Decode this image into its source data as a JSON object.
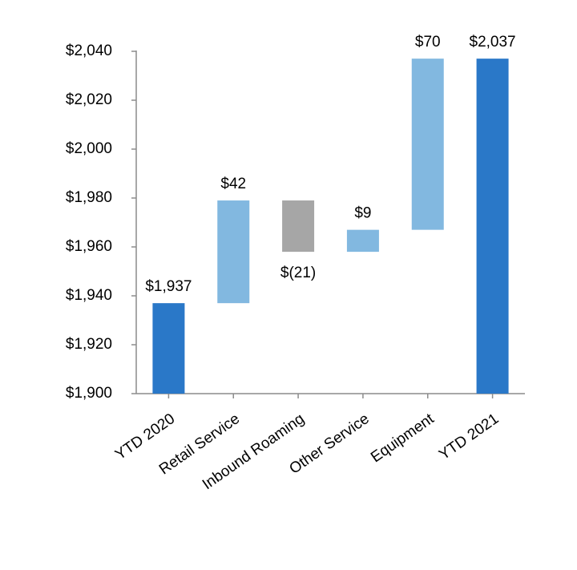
{
  "chart_data": {
    "type": "waterfall",
    "categories": [
      "YTD 2020",
      "Retail Service",
      "Inbound Roaming",
      "Other Service",
      "Equipment",
      "YTD 2021"
    ],
    "values": [
      1937,
      42,
      -21,
      9,
      70,
      2037
    ],
    "value_labels": [
      "$1,937",
      "$42",
      "$(21)",
      "$9",
      "$70",
      "$2,037"
    ],
    "colors": [
      "#2a78c8",
      "#82b8e0",
      "#a6a6a6",
      "#82b8e0",
      "#82b8e0",
      "#2a78c8"
    ],
    "ylim": [
      1900,
      2040
    ],
    "yticks": [
      {
        "value": 1900,
        "label": "$1,900"
      },
      {
        "value": 1920,
        "label": "$1,920"
      },
      {
        "value": 1940,
        "label": "$1,940"
      },
      {
        "value": 1960,
        "label": "$1,960"
      },
      {
        "value": 1980,
        "label": "$1,980"
      },
      {
        "value": 2000,
        "label": "$2,000"
      },
      {
        "value": 2020,
        "label": "$2,020"
      },
      {
        "value": 2040,
        "label": "$2,040"
      }
    ]
  }
}
